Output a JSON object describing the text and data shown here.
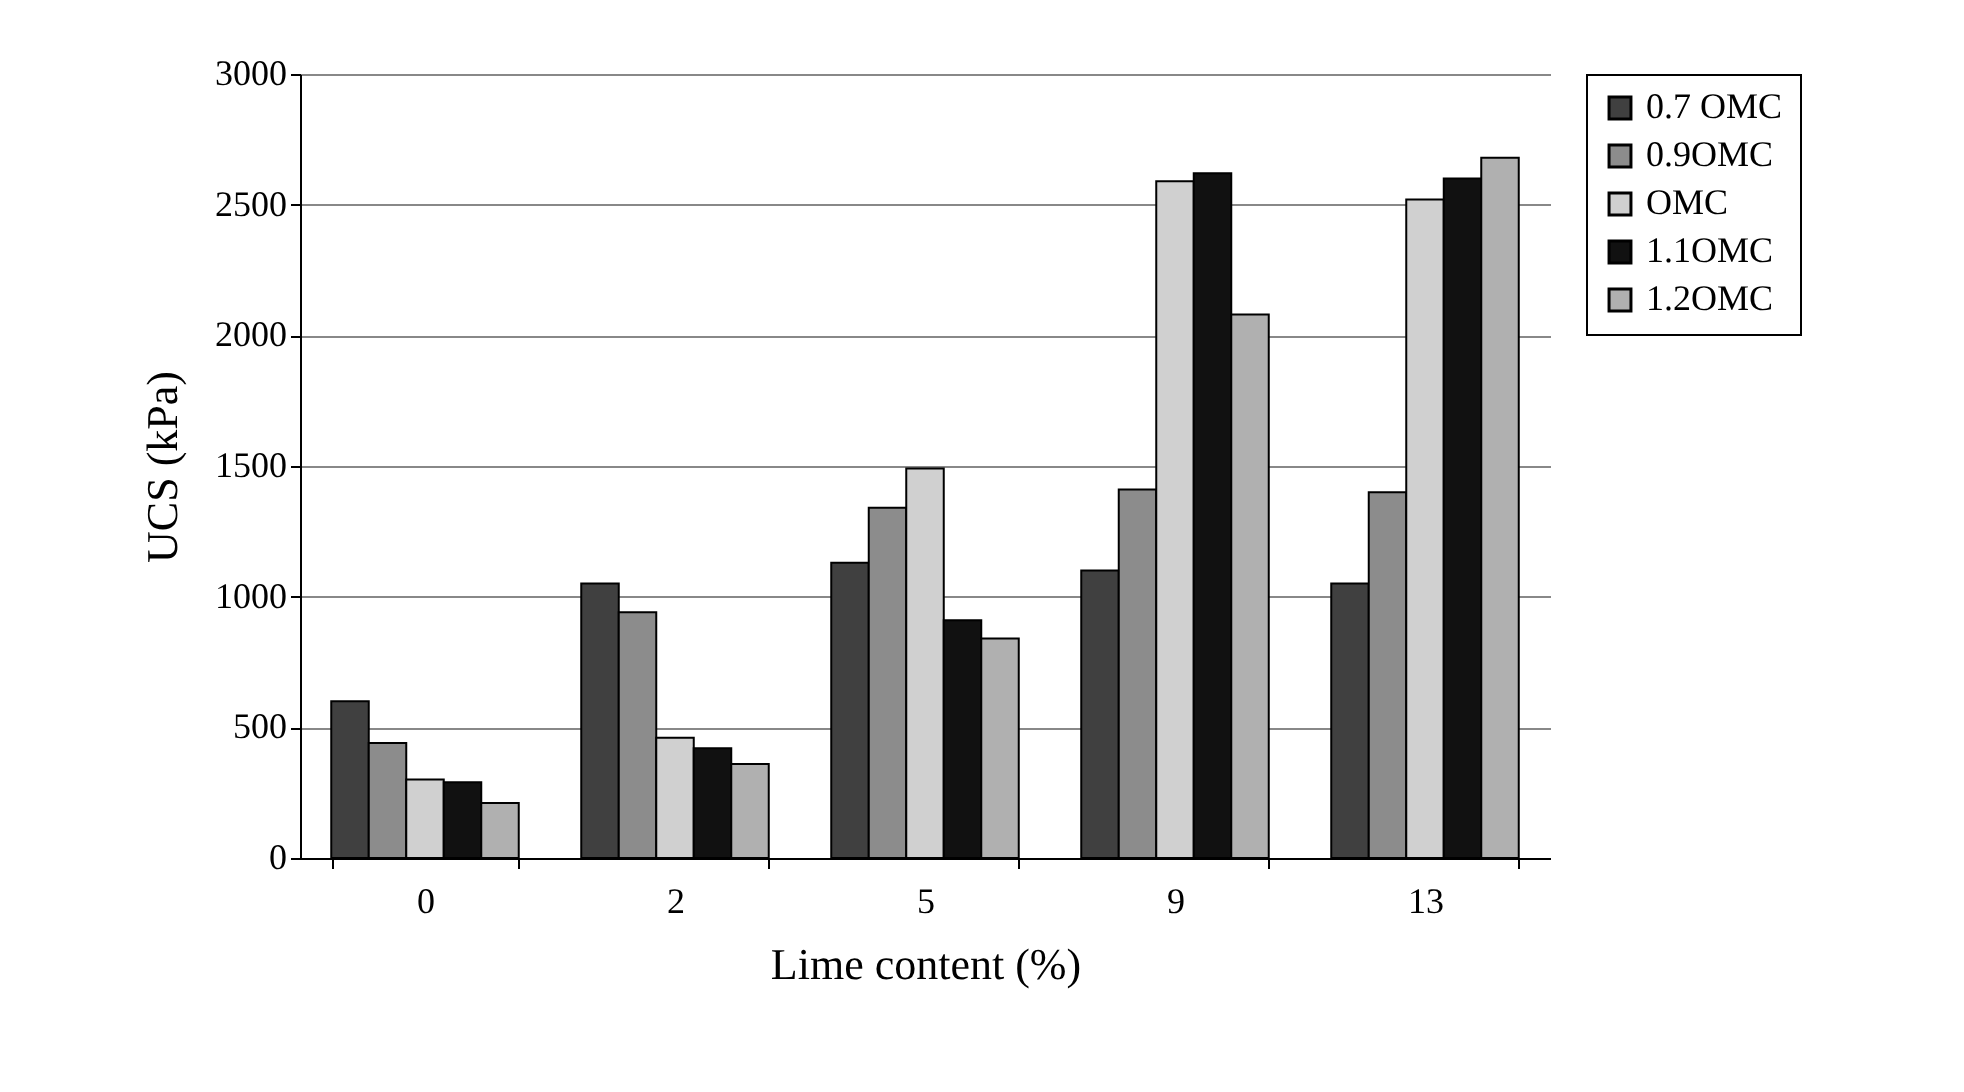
{
  "chart_data": {
    "type": "bar",
    "xlabel": "Lime content (%)",
    "ylabel": "UCS (kPa)",
    "categories": [
      "0",
      "2",
      "5",
      "9",
      "13"
    ],
    "series": [
      {
        "name": "0.7 OMC",
        "color": "#404040",
        "values": [
          600,
          1050,
          1130,
          1100,
          1050
        ]
      },
      {
        "name": "0.9OMC",
        "color": "#8c8c8c",
        "values": [
          440,
          940,
          1340,
          1410,
          1400
        ]
      },
      {
        "name": "OMC",
        "color": "#d0d0d0",
        "values": [
          300,
          460,
          1490,
          2590,
          2520
        ]
      },
      {
        "name": "1.1OMC",
        "color": "#111111",
        "values": [
          290,
          420,
          910,
          2620,
          2600
        ]
      },
      {
        "name": "1.2OMC",
        "color": "#b0b0b0",
        "values": [
          210,
          360,
          840,
          2080,
          2680
        ]
      }
    ],
    "ylim": [
      0,
      3000
    ],
    "yticks": [
      0,
      500,
      1000,
      1500,
      2000,
      2500,
      3000
    ],
    "grid": "y",
    "legend": "right"
  }
}
